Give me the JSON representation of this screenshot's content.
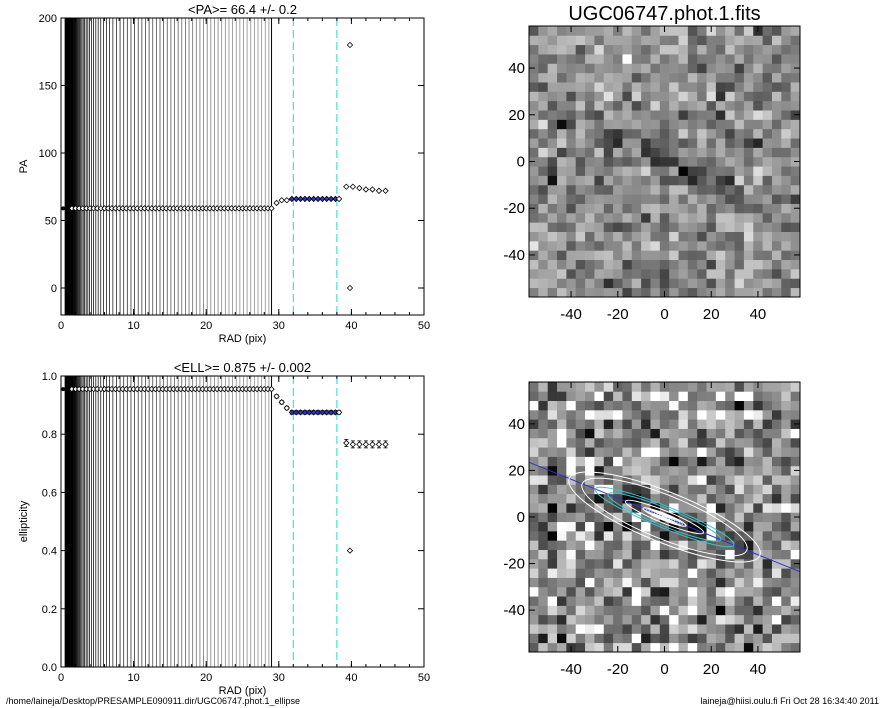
{
  "footer": {
    "path": "/home/laineja/Desktop/PRESAMPLE090911.dir/UGC06747.phot.1_ellipse",
    "stamp": "laineja@hiisi.oulu.fi  Fri Oct 28 16:34:40 2011"
  },
  "chart_data": [
    {
      "type": "scatter",
      "id": "pa",
      "title": "<PA>=  66.4 +/-   0.2",
      "xlabel": "RAD (pix)",
      "ylabel": "PA",
      "xlim": [
        0,
        50
      ],
      "ylim": [
        -20,
        200
      ],
      "xticks": [
        0,
        10,
        20,
        30,
        40,
        50
      ],
      "yticks": [
        0,
        50,
        100,
        150,
        200
      ],
      "vlines_dashed": [
        32,
        38
      ],
      "isophote_line_max": 29,
      "series": [
        {
          "x": [
            1.5,
            2,
            2.5,
            3,
            3.5,
            4,
            4.5,
            5,
            5.5,
            6,
            6.5,
            7,
            7.5,
            8,
            8.5,
            9,
            9.5,
            10,
            10.5,
            11,
            11.5,
            12,
            12.5,
            13,
            13.5,
            14,
            14.5,
            15,
            15.5,
            16,
            16.5,
            17,
            17.5,
            18,
            18.5,
            19,
            19.5,
            20,
            20.5,
            21,
            21.5,
            22,
            22.5,
            23,
            23.5,
            24,
            24.5,
            25,
            25.5,
            26,
            26.5,
            27,
            27.5,
            28,
            28.5,
            29
          ],
          "y": [
            59,
            59,
            59,
            59,
            59,
            59,
            59,
            59,
            59,
            59,
            59,
            59,
            59,
            59,
            59,
            59,
            59,
            59,
            59,
            59,
            59,
            59,
            59,
            59,
            59,
            59,
            59,
            59,
            59,
            59,
            59,
            59,
            59,
            59,
            59,
            59,
            59,
            59,
            59,
            59,
            59,
            59,
            59,
            59,
            59,
            59,
            59,
            59,
            59,
            59,
            59,
            59,
            59,
            59,
            59,
            59
          ]
        },
        {
          "x": [
            29.7,
            30.4,
            31.1
          ],
          "y": [
            63,
            65,
            65
          ]
        },
        {
          "x": [
            31.8,
            32.4,
            33,
            33.6,
            34.2,
            34.8,
            35.4,
            36,
            36.6,
            37.2,
            37.8
          ],
          "y": [
            66,
            66,
            66,
            66,
            66,
            66,
            66,
            66,
            66,
            66,
            66
          ]
        },
        {
          "x": [
            38.3
          ],
          "y": [
            66
          ]
        },
        {
          "x": [
            39.3,
            40.2,
            41.1,
            42,
            42.9,
            43.8,
            44.7
          ],
          "y": [
            75,
            75,
            74,
            73,
            73,
            72,
            72
          ]
        },
        {
          "x": [
            39.8,
            39.8
          ],
          "y": [
            180,
            0
          ]
        }
      ]
    },
    {
      "type": "scatter",
      "id": "ell",
      "title": "<ELL>= 0.875 +/-  0.002",
      "xlabel": "RAD (pix)",
      "ylabel": "ellipticity",
      "xlim": [
        0,
        50
      ],
      "ylim": [
        0,
        1
      ],
      "xticks": [
        0,
        10,
        20,
        30,
        40,
        50
      ],
      "yticks": [
        0.0,
        0.2,
        0.4,
        0.6,
        0.8,
        1.0
      ],
      "vlines_dashed": [
        32,
        38
      ],
      "isophote_line_max": 29,
      "series": [
        {
          "x": [
            1.5,
            2,
            2.5,
            3,
            3.5,
            4,
            4.5,
            5,
            5.5,
            6,
            6.5,
            7,
            7.5,
            8,
            8.5,
            9,
            9.5,
            10,
            10.5,
            11,
            11.5,
            12,
            12.5,
            13,
            13.5,
            14,
            14.5,
            15,
            15.5,
            16,
            16.5,
            17,
            17.5,
            18,
            18.5,
            19,
            19.5,
            20,
            20.5,
            21,
            21.5,
            22,
            22.5,
            23,
            23.5,
            24,
            24.5,
            25,
            25.5,
            26,
            26.5,
            27,
            27.5,
            28,
            28.5,
            29
          ],
          "y": [
            0.955,
            0.955,
            0.955,
            0.955,
            0.955,
            0.955,
            0.955,
            0.955,
            0.955,
            0.955,
            0.955,
            0.955,
            0.955,
            0.955,
            0.955,
            0.955,
            0.955,
            0.955,
            0.955,
            0.955,
            0.955,
            0.955,
            0.955,
            0.955,
            0.955,
            0.955,
            0.955,
            0.955,
            0.955,
            0.955,
            0.955,
            0.955,
            0.955,
            0.955,
            0.955,
            0.955,
            0.955,
            0.955,
            0.955,
            0.955,
            0.955,
            0.955,
            0.955,
            0.955,
            0.955,
            0.955,
            0.955,
            0.955,
            0.955,
            0.955,
            0.955,
            0.955,
            0.955,
            0.955,
            0.955,
            0.955
          ]
        },
        {
          "x": [
            29.7,
            30.4,
            31.1
          ],
          "y": [
            0.93,
            0.91,
            0.89
          ]
        },
        {
          "x": [
            31.8,
            32.4,
            33,
            33.6,
            34.2,
            34.8,
            35.4,
            36,
            36.6,
            37.2,
            37.8
          ],
          "y": [
            0.875,
            0.875,
            0.875,
            0.875,
            0.875,
            0.875,
            0.875,
            0.875,
            0.875,
            0.875,
            0.875
          ]
        },
        {
          "x": [
            38.3
          ],
          "y": [
            0.875
          ]
        },
        {
          "x": [
            39.3,
            40.2,
            41.1,
            42,
            42.9,
            43.8,
            44.7
          ],
          "y": [
            0.77,
            0.765,
            0.765,
            0.765,
            0.765,
            0.765,
            0.765
          ]
        },
        {
          "x": [
            39.8
          ],
          "y": [
            0.4
          ]
        }
      ]
    },
    {
      "type": "heatmap",
      "id": "img",
      "title": "UGC06747.phot.1.fits",
      "xlim": [
        -58,
        58
      ],
      "ylim": [
        -58,
        58
      ],
      "xticks": [
        -40,
        -20,
        0,
        20,
        40
      ],
      "yticks": [
        -40,
        -20,
        0,
        20,
        40
      ],
      "pixel_size": 4,
      "galaxy_pa_deg": 66.4,
      "galaxy_ell": 0.875
    },
    {
      "type": "heatmap",
      "id": "model",
      "title": "",
      "xlim": [
        -58,
        58
      ],
      "ylim": [
        -58,
        58
      ],
      "xticks": [
        -40,
        -20,
        0,
        20,
        40
      ],
      "yticks": [
        -40,
        -20,
        0,
        20,
        40
      ],
      "pixel_size": 4,
      "ellipse_semimajor": [
        10,
        18,
        26,
        32,
        38,
        44
      ],
      "ellipse_colors": [
        "#ffffff",
        "#ffffff",
        "#3fc1c9",
        "#3fc1c9",
        "#ffffff",
        "#ffffff"
      ]
    }
  ],
  "colors": {
    "accent_points": "#2a33c8",
    "dashed_lines": "#3fd9d0",
    "major_axis": "#2a33c8"
  }
}
